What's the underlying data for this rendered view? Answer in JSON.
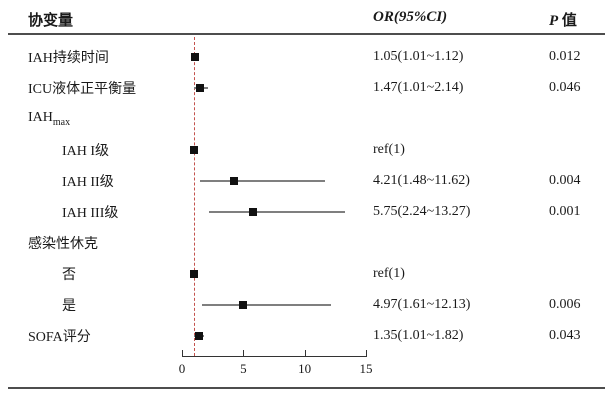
{
  "header": {
    "covariate": "协变量",
    "or_ci": "OR(95%CI)",
    "p_italic": "P",
    "p_rest": " 值"
  },
  "colors": {
    "marker": "#111111",
    "ci_line": "#7f7f7f",
    "reference_line": "#c4534e",
    "rule": "#4d4d4d",
    "axis": "#333333"
  },
  "chart_data": {
    "type": "scatter",
    "subtype": "forest-plot",
    "title": "",
    "xlabel": "",
    "x_axis": {
      "range": [
        0,
        15
      ],
      "ticks": [
        0,
        5,
        10,
        15
      ]
    },
    "reference_line_x": 1,
    "grid": false,
    "legend": "none",
    "rows": [
      {
        "label": "IAH持续时间",
        "indent": false,
        "or": 1.05,
        "ci_low": 1.01,
        "ci_high": 1.12,
        "or_text": "1.05(1.01~1.12)",
        "p_text": "0.012"
      },
      {
        "label": "ICU液体正平衡量",
        "indent": false,
        "or": 1.47,
        "ci_low": 1.01,
        "ci_high": 2.14,
        "or_text": "1.47(1.01~2.14)",
        "p_text": "0.046"
      },
      {
        "label": "IAH",
        "label_sub": "max",
        "indent": false,
        "or": null,
        "ci_low": null,
        "ci_high": null,
        "or_text": "",
        "p_text": ""
      },
      {
        "label": "IAH I级",
        "indent": true,
        "or": 1.0,
        "ci_low": 1.0,
        "ci_high": 1.0,
        "or_text": "ref(1)",
        "p_text": ""
      },
      {
        "label": "IAH II级",
        "indent": true,
        "or": 4.21,
        "ci_low": 1.48,
        "ci_high": 11.62,
        "or_text": "4.21(1.48~11.62)",
        "p_text": "0.004"
      },
      {
        "label": "IAH III级",
        "indent": true,
        "or": 5.75,
        "ci_low": 2.24,
        "ci_high": 13.27,
        "or_text": "5.75(2.24~13.27)",
        "p_text": "0.001"
      },
      {
        "label": "感染性休克",
        "indent": false,
        "or": null,
        "ci_low": null,
        "ci_high": null,
        "or_text": "",
        "p_text": ""
      },
      {
        "label": "否",
        "indent": true,
        "or": 1.0,
        "ci_low": 1.0,
        "ci_high": 1.0,
        "or_text": "ref(1)",
        "p_text": ""
      },
      {
        "label": "是",
        "indent": true,
        "or": 4.97,
        "ci_low": 1.61,
        "ci_high": 12.13,
        "or_text": "4.97(1.61~12.13)",
        "p_text": "0.006"
      },
      {
        "label": "SOFA评分",
        "indent": false,
        "or": 1.35,
        "ci_low": 1.01,
        "ci_high": 1.82,
        "or_text": "1.35(1.01~1.82)",
        "p_text": "0.043"
      }
    ]
  }
}
